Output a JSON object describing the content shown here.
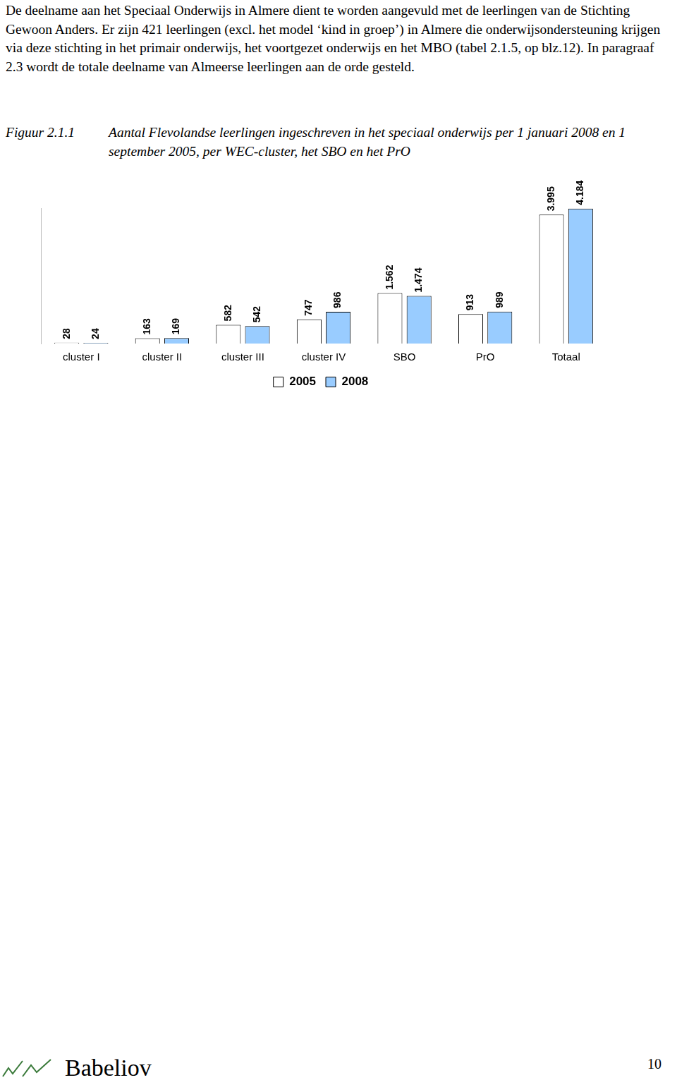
{
  "text": {
    "paragraph": "De deelname aan het Speciaal Onderwijs in Almere dient te worden aangevuld met de leerlingen van de Stichting Gewoon Anders. Er zijn 421 leerlingen (excl. het model ‘kind in groep’) in Almere die onderwijsondersteuning krijgen via deze stichting in het primair onderwijs, het voortgezet onderwijs en het MBO (tabel 2.1.5, op blz.12). In paragraaf 2.3 wordt de totale deelname van Almeerse leerlingen aan de orde gesteld."
  },
  "figure": {
    "label": "Figuur 2.1.1",
    "caption": "Aantal Flevolandse leerlingen ingeschreven in het speciaal onderwijs per 1 januari 2008 en 1 september 2005, per WEC-cluster, het SBO en het PrO"
  },
  "chart_data": {
    "type": "bar",
    "categories": [
      "cluster I",
      "cluster II",
      "cluster III",
      "cluster IV",
      "SBO",
      "PrO",
      "Totaal"
    ],
    "series": [
      {
        "name": "2005",
        "color": "#ffffff",
        "values": [
          28,
          163,
          582,
          747,
          1562,
          913,
          3995
        ],
        "value_labels": [
          "28",
          "163",
          "582",
          "747",
          "1.562",
          "913",
          "3.995"
        ]
      },
      {
        "name": "2008",
        "color": "#99ccff",
        "values": [
          24,
          169,
          542,
          986,
          1474,
          989,
          4184
        ],
        "value_labels": [
          "24",
          "169",
          "542",
          "986",
          "1.474",
          "989",
          "4.184"
        ]
      }
    ],
    "ylim": [
      0,
      4200
    ],
    "grid": false,
    "legend": "bottom",
    "data_labels": true,
    "tick_labels": "x"
  },
  "footer": {
    "logo": "Babeliov",
    "page": 10
  }
}
